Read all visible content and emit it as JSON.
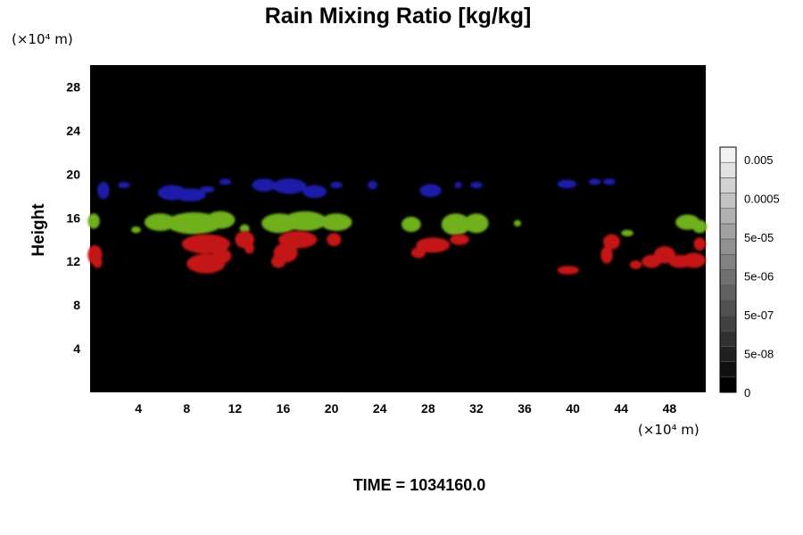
{
  "chart_data": {
    "type": "heatmap",
    "title": "Rain Mixing Ratio [kg/kg]",
    "ylabel": "Height",
    "xlabel": "",
    "x_unit": "(×10⁴ m)",
    "y_unit": "(×10⁴ m)",
    "xlim": [
      0,
      51
    ],
    "ylim": [
      0,
      30
    ],
    "x_ticks": [
      "4",
      "8",
      "12",
      "16",
      "20",
      "24",
      "28",
      "32",
      "36",
      "40",
      "44",
      "48"
    ],
    "x_tick_values": [
      4,
      8,
      12,
      16,
      20,
      24,
      28,
      32,
      36,
      40,
      44,
      48
    ],
    "y_ticks": [
      "4",
      "8",
      "12",
      "16",
      "20",
      "24",
      "28"
    ],
    "y_tick_values": [
      4,
      8,
      12,
      16,
      20,
      24,
      28
    ],
    "background_color": "#000000",
    "colorbar": {
      "labels": [
        "0.005",
        "0.0005",
        "5e-05",
        "5e-06",
        "5e-07",
        "5e-08",
        "0"
      ],
      "levels": 16,
      "color_low": "#000000",
      "color_high": "#f2f2f2"
    },
    "regions": [
      {
        "name": "blue",
        "color": "#1a1aa8",
        "blobs": [
          {
            "x": 1.1,
            "y": 18.5,
            "rx": 0.5,
            "ry": 0.8
          },
          {
            "x": 2.8,
            "y": 19.0,
            "rx": 0.5,
            "ry": 0.3
          },
          {
            "x": 6.8,
            "y": 18.3,
            "rx": 1.2,
            "ry": 0.7
          },
          {
            "x": 8.3,
            "y": 18.1,
            "rx": 1.3,
            "ry": 0.6
          },
          {
            "x": 9.7,
            "y": 18.6,
            "rx": 0.6,
            "ry": 0.3
          },
          {
            "x": 11.2,
            "y": 19.3,
            "rx": 0.5,
            "ry": 0.3
          },
          {
            "x": 14.4,
            "y": 19.0,
            "rx": 1.0,
            "ry": 0.6
          },
          {
            "x": 16.5,
            "y": 18.9,
            "rx": 1.4,
            "ry": 0.7
          },
          {
            "x": 18.6,
            "y": 18.4,
            "rx": 1.0,
            "ry": 0.6
          },
          {
            "x": 20.4,
            "y": 19.0,
            "rx": 0.5,
            "ry": 0.3
          },
          {
            "x": 23.4,
            "y": 19.0,
            "rx": 0.4,
            "ry": 0.4
          },
          {
            "x": 28.2,
            "y": 18.5,
            "rx": 0.9,
            "ry": 0.6
          },
          {
            "x": 30.5,
            "y": 19.0,
            "rx": 0.3,
            "ry": 0.3
          },
          {
            "x": 32.0,
            "y": 19.0,
            "rx": 0.5,
            "ry": 0.3
          },
          {
            "x": 39.5,
            "y": 19.1,
            "rx": 0.8,
            "ry": 0.4
          },
          {
            "x": 41.8,
            "y": 19.3,
            "rx": 0.5,
            "ry": 0.3
          },
          {
            "x": 43.0,
            "y": 19.3,
            "rx": 0.5,
            "ry": 0.3
          }
        ]
      },
      {
        "name": "green",
        "color": "#6fb01a",
        "blobs": [
          {
            "x": 0.3,
            "y": 15.7,
            "rx": 0.5,
            "ry": 0.7
          },
          {
            "x": 3.8,
            "y": 14.9,
            "rx": 0.4,
            "ry": 0.3
          },
          {
            "x": 5.8,
            "y": 15.6,
            "rx": 1.3,
            "ry": 0.8
          },
          {
            "x": 8.6,
            "y": 15.5,
            "rx": 2.3,
            "ry": 1.0
          },
          {
            "x": 10.8,
            "y": 15.8,
            "rx": 1.2,
            "ry": 0.8
          },
          {
            "x": 12.8,
            "y": 15.0,
            "rx": 0.4,
            "ry": 0.4
          },
          {
            "x": 15.7,
            "y": 15.5,
            "rx": 1.5,
            "ry": 0.9
          },
          {
            "x": 17.8,
            "y": 15.7,
            "rx": 1.8,
            "ry": 0.9
          },
          {
            "x": 20.4,
            "y": 15.6,
            "rx": 1.3,
            "ry": 0.8
          },
          {
            "x": 26.6,
            "y": 15.4,
            "rx": 0.8,
            "ry": 0.7
          },
          {
            "x": 30.3,
            "y": 15.4,
            "rx": 1.2,
            "ry": 1.0
          },
          {
            "x": 32.0,
            "y": 15.5,
            "rx": 1.0,
            "ry": 0.9
          },
          {
            "x": 35.4,
            "y": 15.5,
            "rx": 0.3,
            "ry": 0.3
          },
          {
            "x": 44.5,
            "y": 14.6,
            "rx": 0.5,
            "ry": 0.3
          },
          {
            "x": 49.5,
            "y": 15.6,
            "rx": 1.0,
            "ry": 0.7
          },
          {
            "x": 50.5,
            "y": 15.2,
            "rx": 0.6,
            "ry": 0.6
          }
        ]
      },
      {
        "name": "red",
        "color": "#c41414",
        "blobs": [
          {
            "x": 0.4,
            "y": 12.6,
            "rx": 0.6,
            "ry": 0.9
          },
          {
            "x": 0.6,
            "y": 11.9,
            "rx": 0.4,
            "ry": 0.5
          },
          {
            "x": 9.6,
            "y": 13.6,
            "rx": 2.0,
            "ry": 0.9
          },
          {
            "x": 9.6,
            "y": 11.8,
            "rx": 1.6,
            "ry": 0.9
          },
          {
            "x": 10.9,
            "y": 12.5,
            "rx": 0.8,
            "ry": 0.7
          },
          {
            "x": 12.8,
            "y": 14.0,
            "rx": 0.8,
            "ry": 0.8
          },
          {
            "x": 13.2,
            "y": 13.2,
            "rx": 0.4,
            "ry": 0.5
          },
          {
            "x": 17.2,
            "y": 14.0,
            "rx": 1.6,
            "ry": 0.8
          },
          {
            "x": 16.2,
            "y": 12.8,
            "rx": 1.0,
            "ry": 0.9
          },
          {
            "x": 15.6,
            "y": 12.0,
            "rx": 0.6,
            "ry": 0.6
          },
          {
            "x": 20.2,
            "y": 14.0,
            "rx": 0.6,
            "ry": 0.6
          },
          {
            "x": 28.4,
            "y": 13.5,
            "rx": 1.4,
            "ry": 0.7
          },
          {
            "x": 27.2,
            "y": 12.8,
            "rx": 0.6,
            "ry": 0.5
          },
          {
            "x": 30.6,
            "y": 14.0,
            "rx": 0.8,
            "ry": 0.5
          },
          {
            "x": 39.6,
            "y": 11.2,
            "rx": 0.9,
            "ry": 0.4
          },
          {
            "x": 43.2,
            "y": 13.8,
            "rx": 0.7,
            "ry": 0.7
          },
          {
            "x": 42.8,
            "y": 12.6,
            "rx": 0.5,
            "ry": 0.8
          },
          {
            "x": 45.2,
            "y": 11.7,
            "rx": 0.5,
            "ry": 0.4
          },
          {
            "x": 46.5,
            "y": 12.0,
            "rx": 0.8,
            "ry": 0.6
          },
          {
            "x": 47.6,
            "y": 12.6,
            "rx": 0.9,
            "ry": 0.8
          },
          {
            "x": 48.9,
            "y": 12.0,
            "rx": 1.0,
            "ry": 0.6
          },
          {
            "x": 50.0,
            "y": 12.1,
            "rx": 1.0,
            "ry": 0.7
          },
          {
            "x": 50.5,
            "y": 13.6,
            "rx": 0.5,
            "ry": 0.6
          }
        ]
      }
    ]
  },
  "footer": {
    "time_label": "TIME = 1034160.0"
  }
}
